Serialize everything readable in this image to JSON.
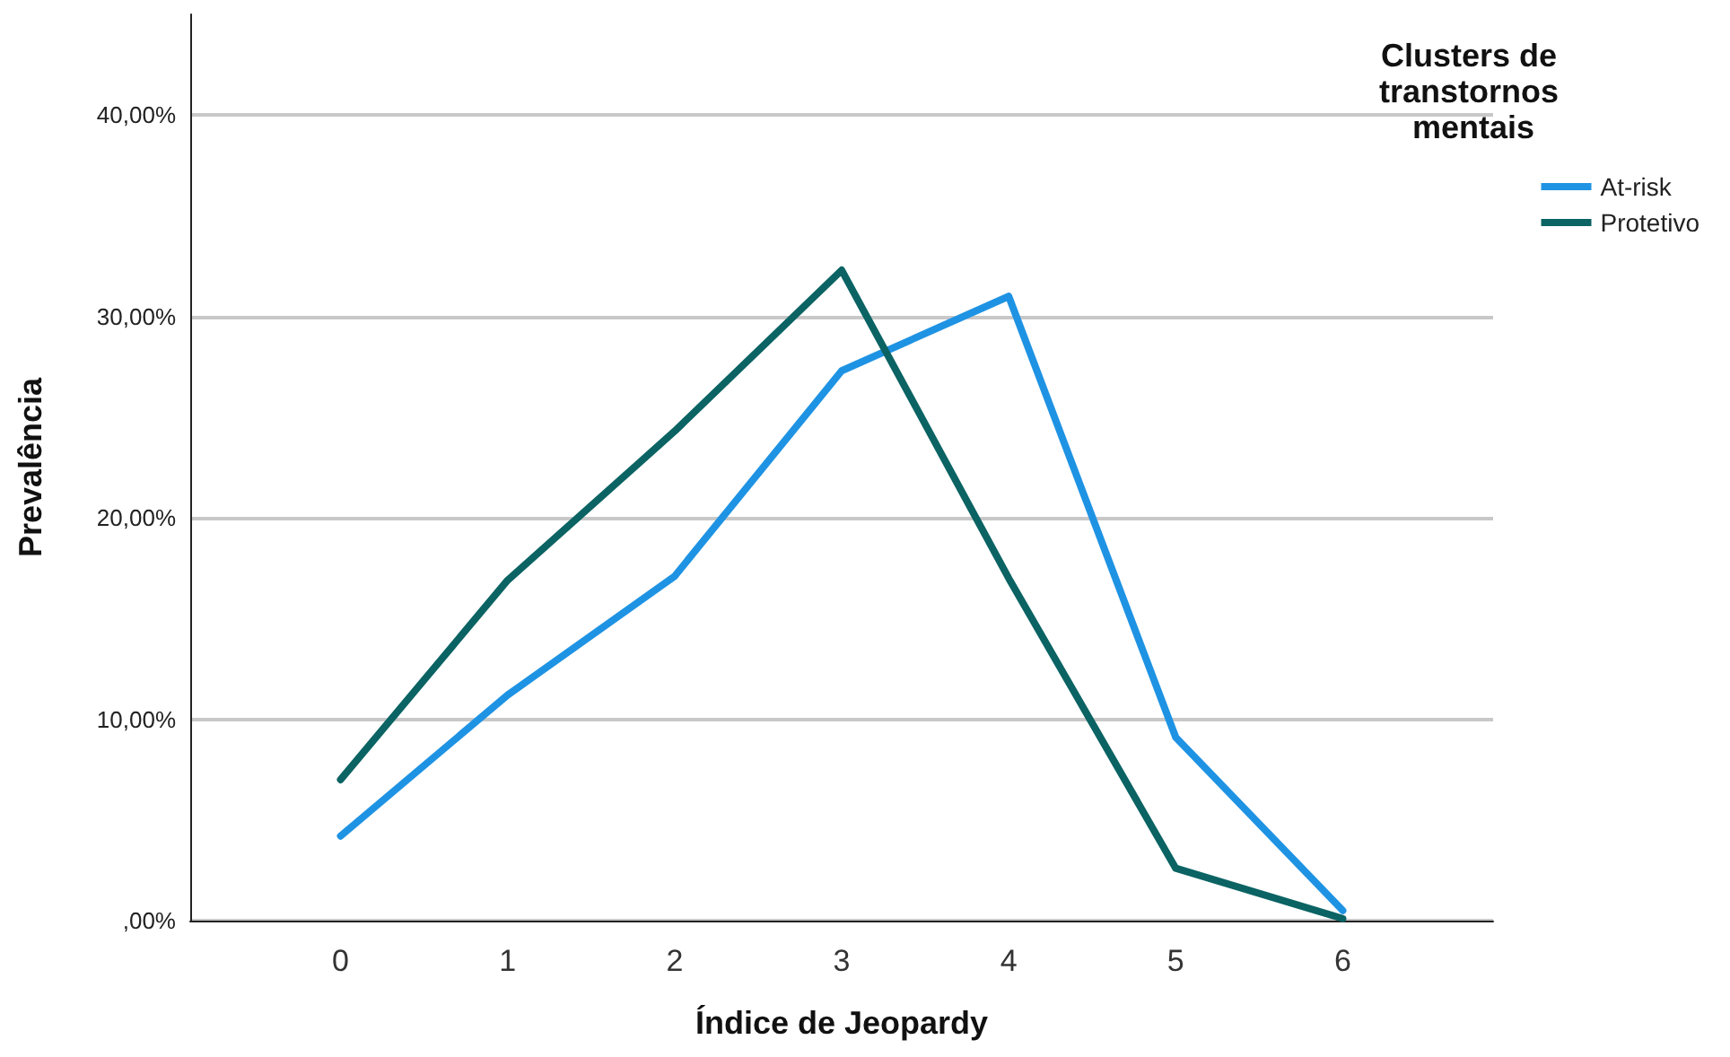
{
  "chart_data": {
    "type": "line",
    "xlabel": "Índice de Jeopardy",
    "ylabel": "Prevalência",
    "legend_title": "Clusters de transtornos mentais",
    "x": [
      0,
      1,
      2,
      3,
      4,
      5,
      6
    ],
    "series": [
      {
        "name": "At-risk",
        "color": "#1f93e3",
        "values": [
          4.2,
          11.2,
          17.1,
          27.3,
          31.0,
          9.1,
          0.5
        ]
      },
      {
        "name": "Protetivo",
        "color": "#0b6363",
        "values": [
          7.0,
          16.9,
          24.3,
          32.3,
          17.0,
          2.6,
          0.1
        ]
      }
    ],
    "xlim": [
      -0.9,
      6.9
    ],
    "xticks": [
      0,
      1,
      2,
      3,
      4,
      5,
      6
    ],
    "ylim": [
      0,
      45
    ],
    "yticks": [
      {
        "value": 0,
        "label": ",00%"
      },
      {
        "value": 10,
        "label": "10,00%"
      },
      {
        "value": 20,
        "label": "20,00%"
      },
      {
        "value": 30,
        "label": "30,00%"
      },
      {
        "value": 40,
        "label": "40,00%"
      }
    ],
    "grid": "y",
    "legend": "top right",
    "marker": "none",
    "line_style": "solid"
  }
}
